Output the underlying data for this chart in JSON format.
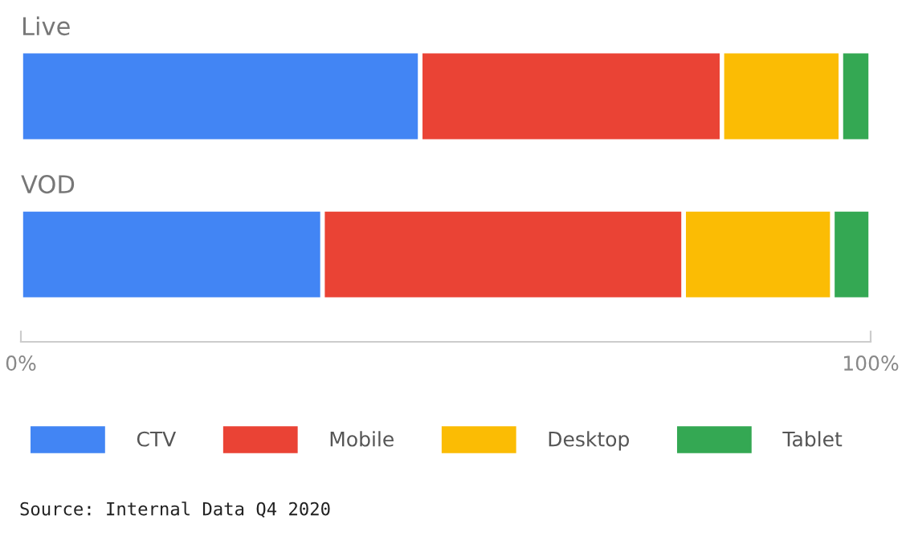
{
  "chart_data": {
    "type": "bar",
    "orientation": "horizontal",
    "stacked": true,
    "categories": [
      "Live",
      "VOD"
    ],
    "series": [
      {
        "name": "CTV",
        "color": "#4285f4",
        "values": [
          47,
          35.5
        ]
      },
      {
        "name": "Mobile",
        "color": "#ea4335",
        "values": [
          35.5,
          42.5
        ]
      },
      {
        "name": "Desktop",
        "color": "#fbbc04",
        "values": [
          14,
          17.5
        ]
      },
      {
        "name": "Tablet",
        "color": "#34a853",
        "values": [
          3.5,
          4.5
        ]
      }
    ],
    "xlim": [
      0,
      100
    ],
    "xticks": [
      {
        "value": 0,
        "label": "0%"
      },
      {
        "value": 100,
        "label": "100%"
      }
    ],
    "grid": false,
    "legend": "bottom",
    "annotations": [
      "Source: Internal Data Q4 2020"
    ]
  }
}
